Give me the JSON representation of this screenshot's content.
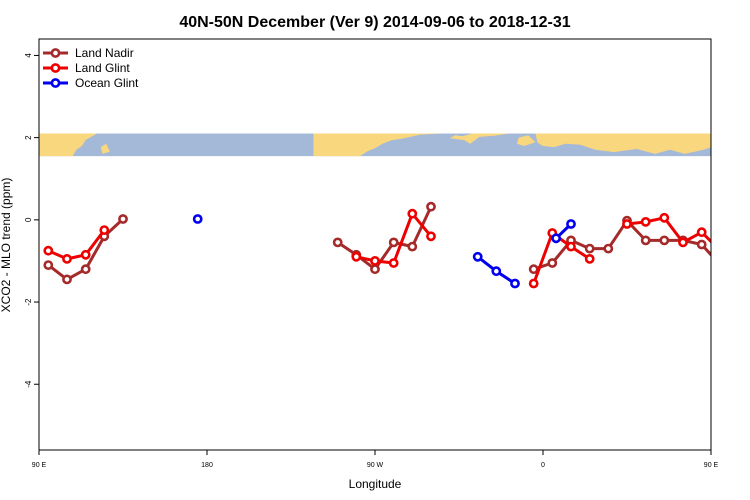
{
  "chart_data": {
    "type": "line",
    "title": "40N-50N December (Ver 9)   2014-09-06 to 2018-12-31",
    "xlabel": "Longitude",
    "ylabel": "XCO2 - MLO trend (ppm)",
    "xlim": [
      90,
      450
    ],
    "ylim": [
      -5.6,
      4.4
    ],
    "x_ticks": [
      {
        "value": 90,
        "label": "90 E"
      },
      {
        "value": 180,
        "label": "180"
      },
      {
        "value": 270,
        "label": "90 W"
      },
      {
        "value": 360,
        "label": "0"
      },
      {
        "value": 450,
        "label": "90 E"
      },
      {
        "value": 540,
        "label": "180"
      }
    ],
    "y_ticks": [
      {
        "value": 4,
        "label": "4"
      },
      {
        "value": 2,
        "label": "2"
      },
      {
        "value": 0,
        "label": "0"
      },
      {
        "value": -2,
        "label": "-2"
      },
      {
        "value": -4,
        "label": "-4"
      }
    ],
    "map_band": {
      "ymin": 1.55,
      "ymax": 2.1,
      "land_color": "#f9d77e",
      "ocean_color": "#a4b8d8"
    },
    "legend": {
      "position": "top-left"
    },
    "series": [
      {
        "name": "Land Nadir",
        "color": "#a52a2a",
        "segments": [
          [
            [
              95,
              -1.1
            ],
            [
              105,
              -1.45
            ],
            [
              115,
              -1.2
            ],
            [
              125,
              -0.4
            ],
            [
              135,
              0.02
            ]
          ],
          [
            [
              250,
              -0.55
            ],
            [
              260,
              -0.85
            ],
            [
              270,
              -1.2
            ],
            [
              280,
              -0.55
            ],
            [
              290,
              -0.65
            ],
            [
              300,
              0.32
            ]
          ],
          [
            [
              355,
              -1.2
            ],
            [
              365,
              -1.05
            ],
            [
              375,
              -0.5
            ],
            [
              385,
              -0.7
            ],
            [
              395,
              -0.7
            ],
            [
              405,
              -0.02
            ],
            [
              415,
              -0.5
            ],
            [
              425,
              -0.5
            ],
            [
              435,
              -0.5
            ],
            [
              445,
              -0.6
            ],
            [
              455,
              -1.1
            ],
            [
              465,
              -1.45
            ],
            [
              475,
              -1.2
            ],
            [
              485,
              -0.4
            ],
            [
              495,
              0.02
            ]
          ]
        ]
      },
      {
        "name": "Land Glint",
        "color": "#ee0000",
        "segments": [
          [
            [
              95,
              -0.75
            ],
            [
              105,
              -0.95
            ],
            [
              115,
              -0.85
            ],
            [
              125,
              -0.25
            ]
          ],
          [
            [
              260,
              -0.9
            ],
            [
              270,
              -1.0
            ],
            [
              280,
              -1.05
            ],
            [
              290,
              0.15
            ],
            [
              300,
              -0.4
            ]
          ],
          [
            [
              355,
              -1.55
            ],
            [
              365,
              -0.32
            ],
            [
              375,
              -0.65
            ],
            [
              385,
              -0.95
            ]
          ],
          [
            [
              405,
              -0.1
            ],
            [
              415,
              -0.05
            ],
            [
              425,
              0.05
            ],
            [
              435,
              -0.55
            ],
            [
              445,
              -0.3
            ],
            [
              455,
              -0.75
            ],
            [
              465,
              -0.95
            ],
            [
              475,
              -0.85
            ],
            [
              485,
              -0.25
            ]
          ]
        ]
      },
      {
        "name": "Ocean Glint",
        "color": "#0000ee",
        "segments": [
          [
            [
              175,
              0.02
            ]
          ],
          [
            [
              325,
              -0.9
            ],
            [
              335,
              -1.25
            ],
            [
              345,
              -1.55
            ]
          ],
          [
            [
              367,
              -0.45
            ],
            [
              375,
              -0.1
            ]
          ]
        ]
      }
    ]
  }
}
